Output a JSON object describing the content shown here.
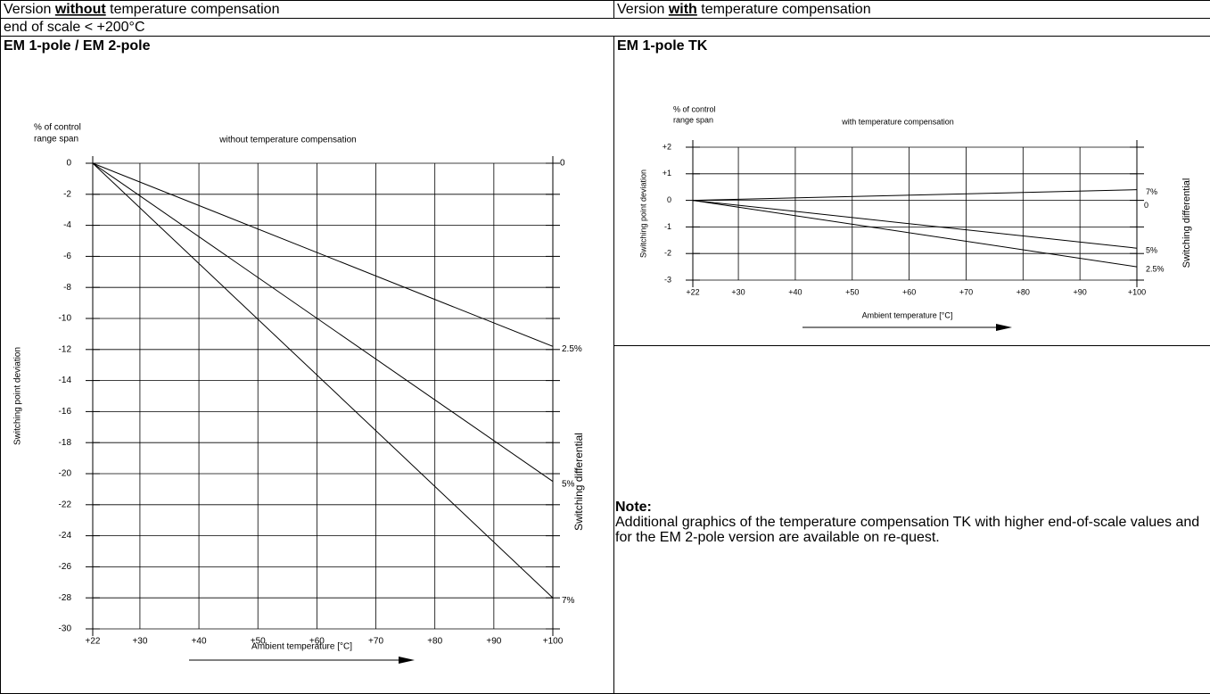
{
  "header": {
    "left": [
      "Version ",
      "without",
      " temperature compensation"
    ],
    "right": [
      "Version ",
      "with",
      " temperature compensation"
    ]
  },
  "scale_note": "end of scale < +200°C",
  "note": {
    "title": "Note:",
    "text": "Additional graphics of the temperature compensation TK with higher end-of-scale values and for the EM 2-pole version are available on re-quest."
  },
  "chart_data": [
    {
      "type": "line",
      "title": "EM 1-pole / EM 2-pole",
      "subtitle": "without temperature compensation",
      "y_unit": [
        "% of control",
        "range span"
      ],
      "ylabel": "Switching point deviation",
      "xlabel": "Ambient temperature [°C]",
      "y2label": "Switching differential",
      "zero_label": "0",
      "x": [
        22,
        100
      ],
      "xlim": [
        22,
        100
      ],
      "xticks": [
        {
          "value": 22,
          "label": "+22"
        },
        {
          "value": 30,
          "label": "+30"
        },
        {
          "value": 40,
          "label": "+40"
        },
        {
          "value": 50,
          "label": "+50"
        },
        {
          "value": 60,
          "label": "+60"
        },
        {
          "value": 70,
          "label": "+70"
        },
        {
          "value": 80,
          "label": "+80"
        },
        {
          "value": 90,
          "label": "+90"
        },
        {
          "value": 100,
          "label": "+100"
        }
      ],
      "ylim": [
        -30,
        0
      ],
      "yticks": [
        0,
        -2,
        -4,
        -6,
        -8,
        -10,
        -12,
        -14,
        -16,
        -18,
        -20,
        -22,
        -24,
        -26,
        -28,
        -30
      ],
      "grid": true,
      "series": [
        {
          "name": "2.5%",
          "color": "#000000",
          "values": [
            0,
            -11.8
          ]
        },
        {
          "name": "5%",
          "color": "#000000",
          "values": [
            0,
            -20.5
          ]
        },
        {
          "name": "7%",
          "color": "#000000",
          "values": [
            0,
            -28
          ]
        }
      ]
    },
    {
      "type": "line",
      "title": "EM 1-pole TK",
      "subtitle": "with temperature compensation",
      "y_unit": [
        "% of control",
        "range span"
      ],
      "ylabel": "Switching point deviation",
      "xlabel": "Ambient temperature [°C]",
      "y2label": "Switching differential",
      "zero_label": "0",
      "x": [
        22,
        100
      ],
      "xlim": [
        22,
        100
      ],
      "xticks": [
        {
          "value": 22,
          "label": "+22"
        },
        {
          "value": 30,
          "label": "+30"
        },
        {
          "value": 40,
          "label": "+40"
        },
        {
          "value": 50,
          "label": "+50"
        },
        {
          "value": 60,
          "label": "+60"
        },
        {
          "value": 70,
          "label": "+70"
        },
        {
          "value": 80,
          "label": "+80"
        },
        {
          "value": 90,
          "label": "+90"
        },
        {
          "value": 100,
          "label": "+100"
        }
      ],
      "ylim": [
        -3,
        2
      ],
      "yticks": [
        {
          "value": 2,
          "label": "+2"
        },
        {
          "value": 1,
          "label": "+1"
        },
        0,
        -1,
        -2,
        -3
      ],
      "grid": true,
      "series": [
        {
          "name": "7%",
          "color": "#000000",
          "values": [
            0,
            0.4
          ]
        },
        {
          "name": "5%",
          "color": "#000000",
          "values": [
            0,
            -1.8
          ]
        },
        {
          "name": "2.5%",
          "color": "#000000",
          "values": [
            0,
            -2.5
          ]
        }
      ]
    }
  ]
}
